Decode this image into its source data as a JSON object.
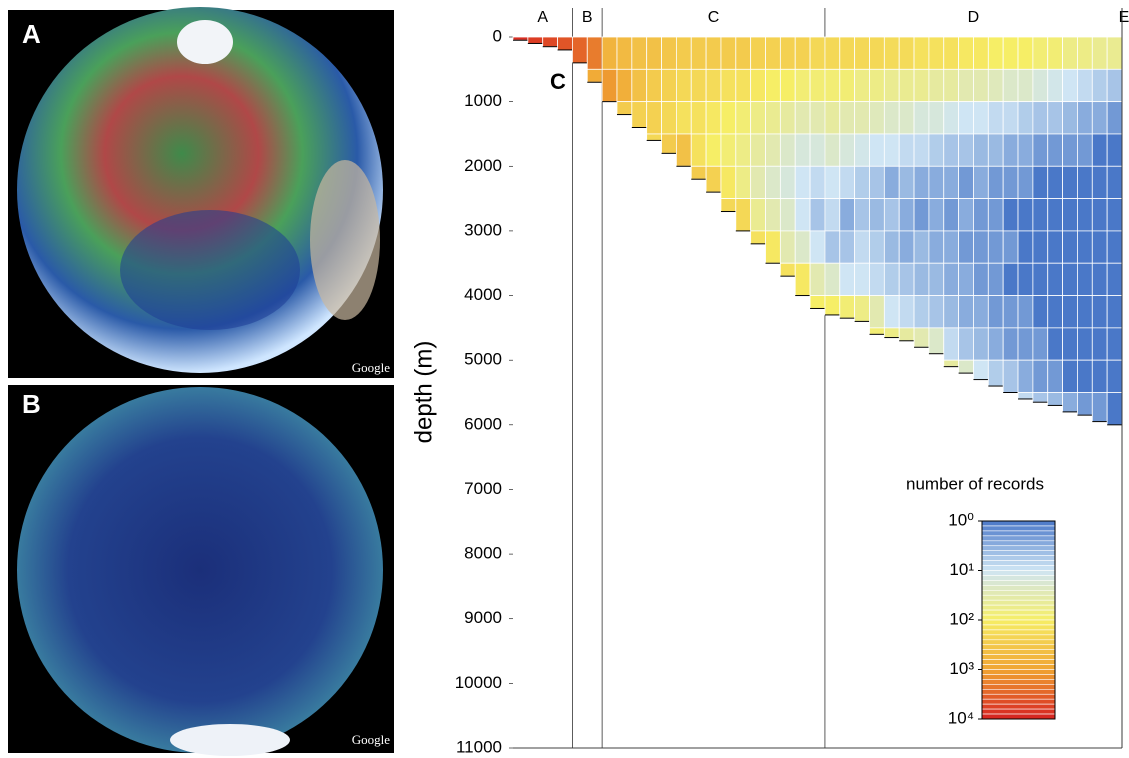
{
  "panels": {
    "a_label": "A",
    "b_label": "B",
    "watermark_a": "Google",
    "watermark_b": "Google"
  },
  "chart_data": {
    "type": "heatmap",
    "panel_label": "C",
    "y_label": "depth (m)",
    "ylim": [
      0,
      11000
    ],
    "y_inverted": true,
    "yticks": [
      0,
      1000,
      2000,
      3000,
      4000,
      5000,
      6000,
      7000,
      8000,
      9000,
      10000,
      11000
    ],
    "y_bins": [
      0,
      500,
      1000,
      1500,
      2000,
      2500,
      3000,
      3500,
      4000,
      4500,
      5000,
      5500,
      6000
    ],
    "zones": [
      {
        "label": "A",
        "columns": [
          {
            "bottom": 50,
            "values": [
              8000
            ]
          },
          {
            "bottom": 100,
            "values": [
              6000
            ]
          },
          {
            "bottom": 150,
            "values": [
              5000
            ]
          },
          {
            "bottom": 200,
            "values": [
              4000
            ]
          }
        ]
      },
      {
        "label": "B",
        "columns": [
          {
            "bottom": 400,
            "values": [
              3000
            ]
          },
          {
            "bottom": 700,
            "values": [
              2000,
              800
            ]
          }
        ]
      },
      {
        "label": "C",
        "columns": [
          {
            "bottom": 1000,
            "values": [
              600,
              1200
            ]
          },
          {
            "bottom": 1200,
            "values": [
              500,
              700,
              300
            ]
          },
          {
            "bottom": 1400,
            "values": [
              400,
              400,
              250
            ]
          },
          {
            "bottom": 1600,
            "values": [
              400,
              300,
              250,
              200
            ]
          },
          {
            "bottom": 1800,
            "values": [
              350,
              250,
              200,
              300
            ]
          },
          {
            "bottom": 2000,
            "values": [
              300,
              200,
              150,
              400
            ]
          },
          {
            "bottom": 2200,
            "values": [
              300,
              200,
              150,
              150,
              300
            ]
          },
          {
            "bottom": 2400,
            "values": [
              300,
              180,
              120,
              100,
              250
            ]
          },
          {
            "bottom": 2700,
            "values": [
              300,
              150,
              100,
              80,
              120,
              200
            ]
          },
          {
            "bottom": 3000,
            "values": [
              300,
              150,
              80,
              60,
              60,
              200
            ]
          },
          {
            "bottom": 3200,
            "values": [
              250,
              120,
              60,
              40,
              30,
              50,
              150
            ]
          },
          {
            "bottom": 3500,
            "values": [
              250,
              100,
              50,
              30,
              20,
              30,
              120
            ]
          },
          {
            "bottom": 3700,
            "values": [
              250,
              100,
              40,
              20,
              15,
              20,
              30,
              150
            ]
          },
          {
            "bottom": 4000,
            "values": [
              250,
              80,
              30,
              15,
              10,
              10,
              20,
              120
            ]
          },
          {
            "bottom": 4200,
            "values": [
              200,
              80,
              30,
              15,
              8,
              5,
              10,
              30,
              100
            ]
          }
        ]
      },
      {
        "label": "D",
        "columns": [
          {
            "bottom": 4300,
            "values": [
              200,
              80,
              40,
              20,
              10,
              8,
              5,
              20,
              100
            ]
          },
          {
            "bottom": 4350,
            "values": [
              200,
              80,
              30,
              15,
              8,
              3,
              5,
              10,
              80
            ]
          },
          {
            "bottom": 4400,
            "values": [
              200,
              60,
              30,
              12,
              6,
              5,
              8,
              10,
              60
            ]
          },
          {
            "bottom": 4600,
            "values": [
              200,
              60,
              25,
              10,
              5,
              4,
              6,
              8,
              30,
              80
            ]
          },
          {
            "bottom": 4650,
            "values": [
              180,
              50,
              20,
              10,
              3,
              5,
              4,
              6,
              10,
              60
            ]
          },
          {
            "bottom": 4700,
            "values": [
              180,
              50,
              20,
              8,
              4,
              3,
              3,
              5,
              8,
              40
            ]
          },
          {
            "bottom": 4800,
            "values": [
              150,
              50,
              15,
              8,
              3,
              2,
              4,
              4,
              6,
              30
            ]
          },
          {
            "bottom": 4900,
            "values": [
              150,
              40,
              15,
              6,
              3,
              3,
              3,
              4,
              5,
              20
            ]
          },
          {
            "bottom": 5100,
            "values": [
              150,
              40,
              12,
              5,
              3,
              2,
              3,
              3,
              4,
              8,
              40
            ]
          },
          {
            "bottom": 5200,
            "values": [
              120,
              30,
              10,
              5,
              2,
              3,
              2,
              3,
              3,
              5,
              20
            ]
          },
          {
            "bottom": 5300,
            "values": [
              120,
              30,
              10,
              4,
              3,
              2,
              2,
              2,
              3,
              4,
              10
            ]
          },
          {
            "bottom": 5400,
            "values": [
              100,
              25,
              8,
              4,
              2,
              2,
              2,
              2,
              2,
              3,
              6
            ]
          },
          {
            "bottom": 5500,
            "values": [
              100,
              20,
              8,
              3,
              2,
              1,
              2,
              1,
              2,
              2,
              5
            ]
          },
          {
            "bottom": 5600,
            "values": [
              100,
              20,
              6,
              3,
              2,
              1,
              1,
              1,
              2,
              2,
              3,
              8
            ]
          },
          {
            "bottom": 5650,
            "values": [
              80,
              15,
              5,
              2,
              1,
              1,
              1,
              1,
              1,
              2,
              2,
              5
            ]
          },
          {
            "bottom": 5700,
            "values": [
              80,
              12,
              5,
              2,
              1,
              1,
              1,
              1,
              1,
              1,
              2,
              4
            ]
          },
          {
            "bottom": 5800,
            "values": [
              60,
              10,
              4,
              2,
              1,
              1,
              1,
              1,
              1,
              1,
              1,
              3
            ]
          },
          {
            "bottom": 5850,
            "values": [
              60,
              8,
              3,
              2,
              1,
              1,
              1,
              1,
              1,
              1,
              1,
              2
            ]
          },
          {
            "bottom": 5950,
            "values": [
              50,
              6,
              3,
              1,
              1,
              1,
              1,
              1,
              1,
              1,
              1,
              2
            ]
          },
          {
            "bottom": 6000,
            "values": [
              50,
              5,
              2,
              1,
              1,
              1,
              1,
              1,
              1,
              1,
              1,
              1
            ]
          }
        ]
      },
      {
        "label": "E",
        "columns": []
      }
    ],
    "colorbar": {
      "title": "number of records",
      "log": true,
      "lim": [
        1,
        10000
      ],
      "ticks": [
        {
          "value": 1,
          "label": "10⁰"
        },
        {
          "value": 10,
          "label": "10¹"
        },
        {
          "value": 100,
          "label": "10²"
        },
        {
          "value": 1000,
          "label": "10³"
        },
        {
          "value": 10000,
          "label": "10⁴"
        }
      ],
      "colors": [
        "#4a78c8",
        "#cfe5f4",
        "#f6ee66",
        "#f0a432",
        "#d62020"
      ]
    }
  }
}
